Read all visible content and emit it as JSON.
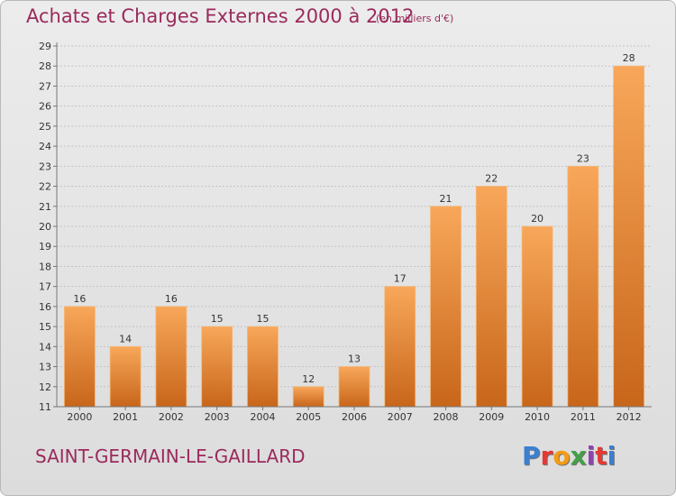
{
  "header": {
    "title": "Achats et Charges Externes 2000 à 2012",
    "subtitle": "(en milliers d'€)"
  },
  "footer": {
    "commune": "SAINT-GERMAIN-LE-GAILLARD",
    "logo_text": "Proxiti",
    "logo_colors": [
      "#3a7fd0",
      "#e53935",
      "#f39c12",
      "#43a047",
      "#8e44ad",
      "#e53935",
      "#3a7fd0"
    ]
  },
  "chart_data": {
    "type": "bar",
    "categories": [
      "2000",
      "2001",
      "2002",
      "2003",
      "2004",
      "2005",
      "2006",
      "2007",
      "2008",
      "2009",
      "2010",
      "2011",
      "2012"
    ],
    "values": [
      16,
      14,
      16,
      15,
      15,
      12,
      13,
      17,
      21,
      22,
      20,
      23,
      28
    ],
    "title": "Achats et Charges Externes 2000 à 2012",
    "ylim": [
      11,
      29
    ],
    "yticks": [
      11,
      12,
      13,
      14,
      15,
      16,
      17,
      18,
      19,
      20,
      21,
      22,
      23,
      24,
      25,
      26,
      27,
      28,
      29
    ],
    "grid": true,
    "bar_color": "#e8862a"
  }
}
